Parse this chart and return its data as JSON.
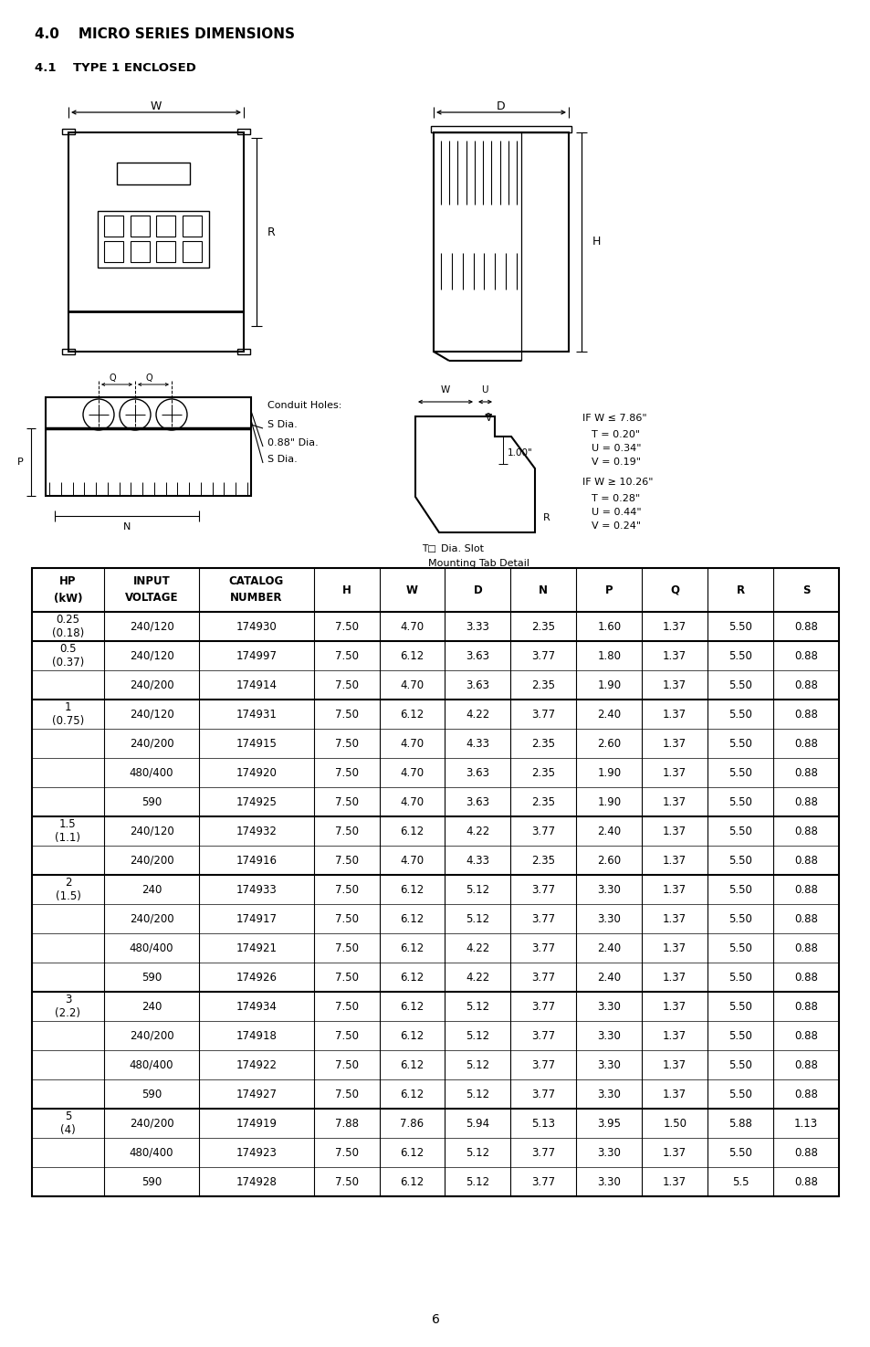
{
  "title": "4.0    MICRO SERIES DIMENSIONS",
  "subtitle": "4.1    TYPE 1 ENCLOSED",
  "page_number": "6",
  "bg_color": "#ffffff",
  "table_headers": [
    "HP\n(kW)",
    "INPUT\nVOLTAGE",
    "CATALOG\nNUMBER",
    "H",
    "W",
    "D",
    "N",
    "P",
    "Q",
    "R",
    "S"
  ],
  "table_data": [
    [
      "0.25\n(0.18)",
      "240/120",
      "174930",
      "7.50",
      "4.70",
      "3.33",
      "2.35",
      "1.60",
      "1.37",
      "5.50",
      "0.88"
    ],
    [
      "0.5\n(0.37)",
      "240/120",
      "174997",
      "7.50",
      "6.12",
      "3.63",
      "3.77",
      "1.80",
      "1.37",
      "5.50",
      "0.88"
    ],
    [
      "",
      "240/200",
      "174914",
      "7.50",
      "4.70",
      "3.63",
      "2.35",
      "1.90",
      "1.37",
      "5.50",
      "0.88"
    ],
    [
      "1\n(0.75)",
      "240/120",
      "174931",
      "7.50",
      "6.12",
      "4.22",
      "3.77",
      "2.40",
      "1.37",
      "5.50",
      "0.88"
    ],
    [
      "",
      "240/200",
      "174915",
      "7.50",
      "4.70",
      "4.33",
      "2.35",
      "2.60",
      "1.37",
      "5.50",
      "0.88"
    ],
    [
      "",
      "480/400",
      "174920",
      "7.50",
      "4.70",
      "3.63",
      "2.35",
      "1.90",
      "1.37",
      "5.50",
      "0.88"
    ],
    [
      "",
      "590",
      "174925",
      "7.50",
      "4.70",
      "3.63",
      "2.35",
      "1.90",
      "1.37",
      "5.50",
      "0.88"
    ],
    [
      "1.5\n(1.1)",
      "240/120",
      "174932",
      "7.50",
      "6.12",
      "4.22",
      "3.77",
      "2.40",
      "1.37",
      "5.50",
      "0.88"
    ],
    [
      "",
      "240/200",
      "174916",
      "7.50",
      "4.70",
      "4.33",
      "2.35",
      "2.60",
      "1.37",
      "5.50",
      "0.88"
    ],
    [
      "2\n(1.5)",
      "240",
      "174933",
      "7.50",
      "6.12",
      "5.12",
      "3.77",
      "3.30",
      "1.37",
      "5.50",
      "0.88"
    ],
    [
      "",
      "240/200",
      "174917",
      "7.50",
      "6.12",
      "5.12",
      "3.77",
      "3.30",
      "1.37",
      "5.50",
      "0.88"
    ],
    [
      "",
      "480/400",
      "174921",
      "7.50",
      "6.12",
      "4.22",
      "3.77",
      "2.40",
      "1.37",
      "5.50",
      "0.88"
    ],
    [
      "",
      "590",
      "174926",
      "7.50",
      "6.12",
      "4.22",
      "3.77",
      "2.40",
      "1.37",
      "5.50",
      "0.88"
    ],
    [
      "3\n(2.2)",
      "240",
      "174934",
      "7.50",
      "6.12",
      "5.12",
      "3.77",
      "3.30",
      "1.37",
      "5.50",
      "0.88"
    ],
    [
      "",
      "240/200",
      "174918",
      "7.50",
      "6.12",
      "5.12",
      "3.77",
      "3.30",
      "1.37",
      "5.50",
      "0.88"
    ],
    [
      "",
      "480/400",
      "174922",
      "7.50",
      "6.12",
      "5.12",
      "3.77",
      "3.30",
      "1.37",
      "5.50",
      "0.88"
    ],
    [
      "",
      "590",
      "174927",
      "7.50",
      "6.12",
      "5.12",
      "3.77",
      "3.30",
      "1.37",
      "5.50",
      "0.88"
    ],
    [
      "5\n(4)",
      "240/200",
      "174919",
      "7.88",
      "7.86",
      "5.94",
      "5.13",
      "3.95",
      "1.50",
      "5.88",
      "1.13"
    ],
    [
      "",
      "480/400",
      "174923",
      "7.50",
      "6.12",
      "5.12",
      "3.77",
      "3.30",
      "1.37",
      "5.50",
      "0.88"
    ],
    [
      "",
      "590",
      "174928",
      "7.50",
      "6.12",
      "5.12",
      "3.77",
      "3.30",
      "1.37",
      "5.5",
      "0.88"
    ]
  ],
  "group_ends": [
    1,
    3,
    7,
    9,
    13,
    17,
    20
  ],
  "if_w_small": [
    "IF W ≤ 7.86\"",
    "T = 0.20\"",
    "U = 0.34\"",
    "V = 0.19\""
  ],
  "if_w_large": [
    "IF W ≥ 10.26\"",
    "T = 0.28\"",
    "U = 0.44\"",
    "V = 0.24\""
  ],
  "mounting_tab_label": "Mounting Tab Detail",
  "dia_slot_label": "Dia. Slot",
  "conduit_label_header": "Conduit Holes:",
  "conduit_labels": [
    "S Dia.",
    "0.88\" Dia.",
    "S Dia."
  ]
}
